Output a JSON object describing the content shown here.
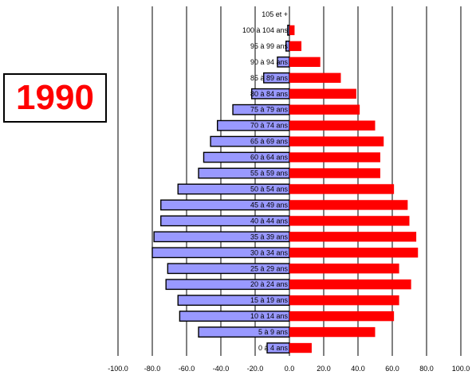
{
  "year_label": "1990",
  "colors": {
    "men": "#9999ff",
    "women": "#ff0000",
    "bar_stroke": "#000000",
    "grid": "#000000"
  },
  "chart_data": {
    "type": "bar",
    "orientation": "horizontal",
    "title": "",
    "xlabel": "",
    "ylabel": "",
    "xlim": [
      -100,
      100
    ],
    "x_ticks": [
      "-100.0",
      "-80.0",
      "-60.0",
      "-40.0",
      "-20.0",
      "0.0",
      "20.0",
      "40.0",
      "60.0",
      "80.0",
      "100.0"
    ],
    "grid": true,
    "categories": [
      "0 à 4 ans",
      "5 à 9 ans",
      "10 à 14 ans",
      "15 à 19 ans",
      "20 à 24 ans",
      "25 à 29 ans",
      "30 à 34 ans",
      "35 à 39 ans",
      "40 à 44 ans",
      "45 à 49 ans",
      "50 à 54 ans",
      "55 à 59 ans",
      "60 à 64 ans",
      "65 à 69 ans",
      "70 à 74 ans",
      "75 à 79 ans",
      "80 à 84 ans",
      "85 à 89 ans",
      "90 à 94 ans",
      "95 à 99 ans",
      "100 à 104 ans",
      "105 et +"
    ],
    "series": [
      {
        "values": [
          -13,
          -53,
          -64,
          -65,
          -72,
          -71,
          -80,
          -79,
          -75,
          -75,
          -65,
          -53,
          -50,
          -46,
          -42,
          -33,
          -22,
          -15,
          -7,
          -2,
          -1,
          0
        ]
      },
      {
        "values": [
          13,
          50,
          61,
          64,
          71,
          64,
          75,
          74,
          70,
          69,
          61,
          53,
          53,
          55,
          50,
          41,
          39,
          30,
          18,
          7,
          3,
          0
        ]
      }
    ]
  }
}
